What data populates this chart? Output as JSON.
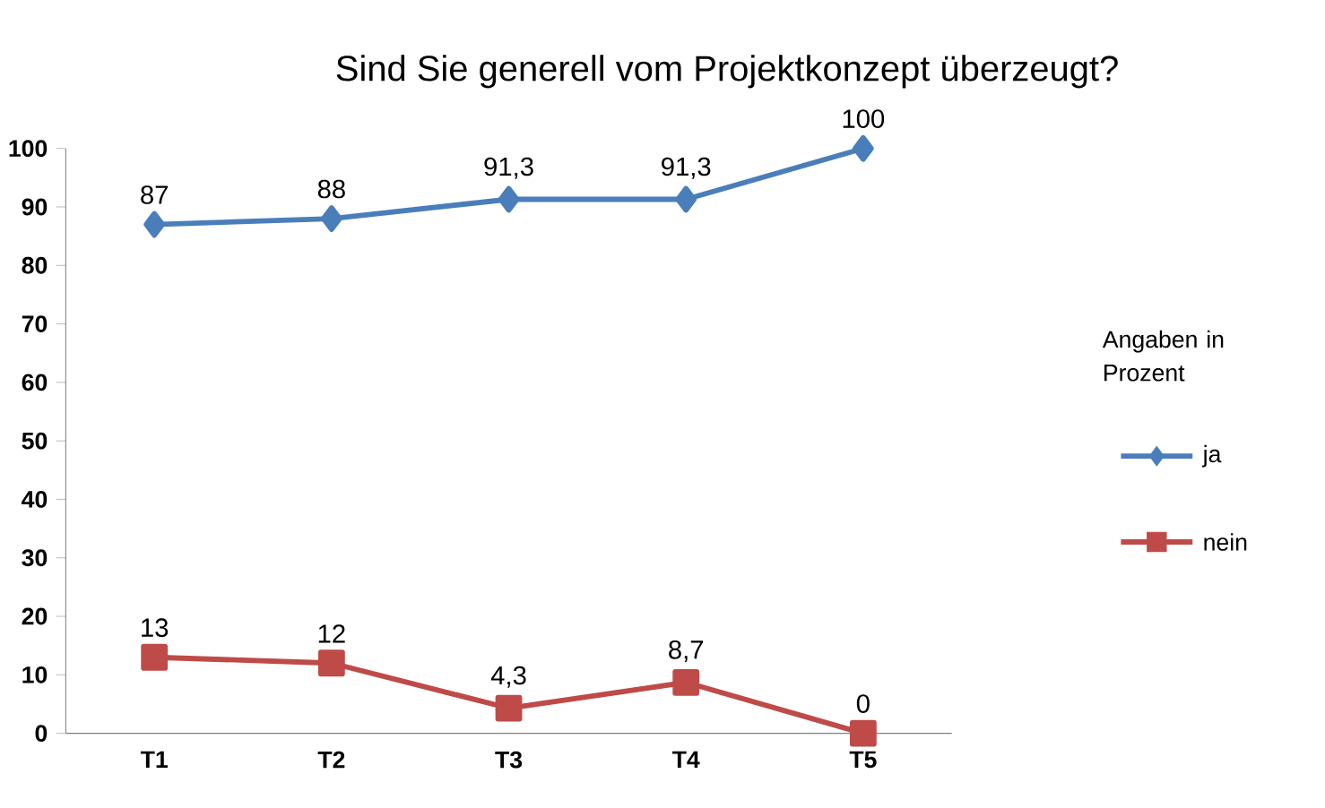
{
  "chart_data": {
    "type": "line",
    "title": "Sind Sie generell vom Projektkonzept überzeugt?",
    "categories": [
      "T1",
      "T2",
      "T3",
      "T4",
      "T5"
    ],
    "series": [
      {
        "name": "ja",
        "color": "#4a7ebb",
        "marker": "diamond",
        "values": [
          87,
          88,
          91.3,
          91.3,
          100
        ],
        "value_labels": [
          "87",
          "88",
          "91,3",
          "91,3",
          "100"
        ]
      },
      {
        "name": "nein",
        "color": "#be4b48",
        "marker": "square",
        "values": [
          13,
          12,
          4.3,
          8.7,
          0
        ],
        "value_labels": [
          "13",
          "12",
          "4,3",
          "8,7",
          "0"
        ]
      }
    ],
    "ylim": [
      0,
      100
    ],
    "yticks": [
      0,
      10,
      20,
      30,
      40,
      50,
      60,
      70,
      80,
      90,
      100
    ],
    "grid": false,
    "legend": "right",
    "legend_title": "Angaben in Prozent",
    "line_style": "solid"
  }
}
